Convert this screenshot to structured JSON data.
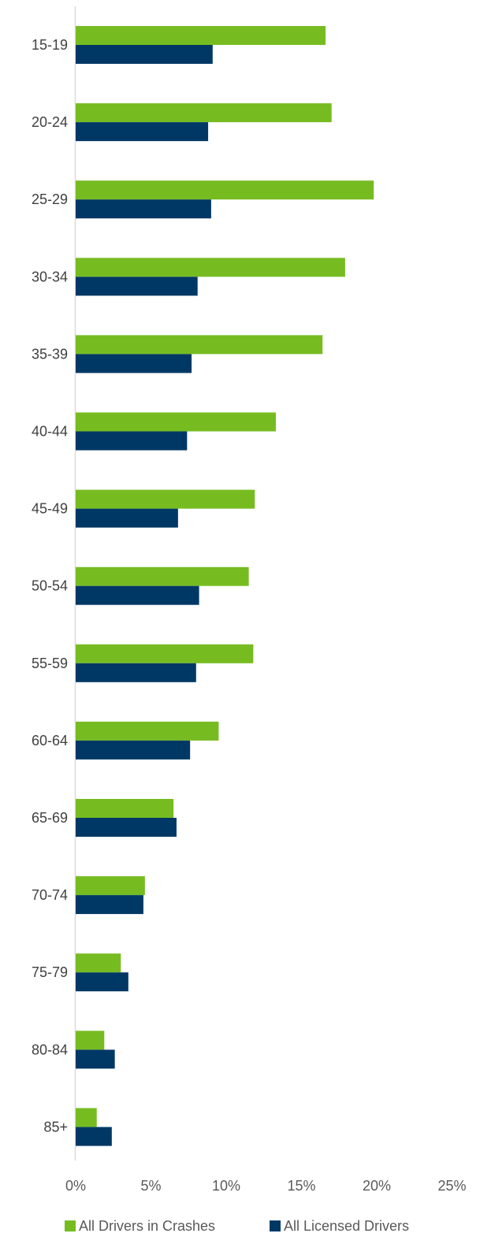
{
  "chart_data": {
    "type": "bar",
    "orientation": "horizontal",
    "categories": [
      "15-19",
      "20-24",
      "25-29",
      "30-34",
      "35-39",
      "40-44",
      "45-49",
      "50-54",
      "55-59",
      "60-64",
      "65-69",
      "70-74",
      "75-79",
      "80-84",
      "85+"
    ],
    "series": [
      {
        "name": "All Drivers in Crashes",
        "color": "#76BC21",
        "values": [
          16.6,
          17.0,
          19.8,
          17.9,
          16.4,
          13.3,
          11.9,
          11.5,
          11.8,
          9.5,
          6.5,
          4.6,
          3.0,
          1.9,
          1.4
        ]
      },
      {
        "name": "All Licensed Drivers",
        "color": "#003865",
        "values": [
          9.1,
          8.8,
          9.0,
          8.1,
          7.7,
          7.4,
          6.8,
          8.2,
          8.0,
          7.6,
          6.7,
          4.5,
          3.5,
          2.6,
          2.4
        ]
      }
    ],
    "x_ticks": [
      "0%",
      "5%",
      "10%",
      "15%",
      "20%",
      "25%"
    ],
    "xlim": [
      0,
      25
    ],
    "x_unit": "%",
    "grid": false,
    "legend_position": "bottom",
    "title": "",
    "xlabel": "",
    "ylabel": ""
  }
}
